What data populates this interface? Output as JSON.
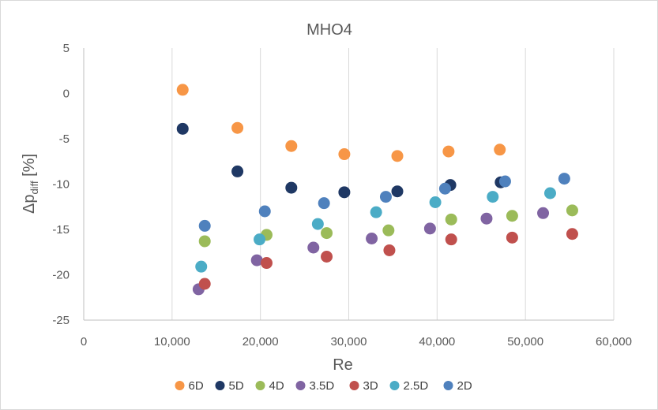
{
  "chart_data": {
    "type": "scatter",
    "title": "MHO4",
    "xlabel": "Re",
    "ylabel_main": "Δp",
    "ylabel_sub": "diff",
    "ylabel_unit": "[%]",
    "xlim": [
      0,
      60000
    ],
    "ylim": [
      -25,
      5
    ],
    "x_ticks": [
      0,
      10000,
      20000,
      30000,
      40000,
      50000,
      60000
    ],
    "x_tick_labels": [
      "0",
      "10,000",
      "20,000",
      "30,000",
      "40,000",
      "50,000",
      "60,000"
    ],
    "y_ticks": [
      5,
      0,
      -5,
      -10,
      -15,
      -20,
      -25
    ],
    "y_tick_labels": [
      "5",
      "0",
      "-5",
      "-10",
      "-15",
      "-20",
      "-25"
    ],
    "grid": "vertical",
    "legend_position": "bottom",
    "series": [
      {
        "name": "6D",
        "color": "#F79646",
        "points": [
          [
            11200,
            0.4
          ],
          [
            17400,
            -3.8
          ],
          [
            23500,
            -5.8
          ],
          [
            29500,
            -6.7
          ],
          [
            35500,
            -6.9
          ],
          [
            41300,
            -6.4
          ],
          [
            47100,
            -6.2
          ]
        ]
      },
      {
        "name": "5D",
        "color": "#1F3864",
        "points": [
          [
            11200,
            -3.9
          ],
          [
            17400,
            -8.6
          ],
          [
            23500,
            -10.4
          ],
          [
            29500,
            -10.9
          ],
          [
            35500,
            -10.8
          ],
          [
            41500,
            -10.1
          ],
          [
            47200,
            -9.8
          ]
        ]
      },
      {
        "name": "4D",
        "color": "#9BBB59",
        "points": [
          [
            13700,
            -16.3
          ],
          [
            20700,
            -15.6
          ],
          [
            27500,
            -15.4
          ],
          [
            34500,
            -15.1
          ],
          [
            41600,
            -13.9
          ],
          [
            48500,
            -13.5
          ],
          [
            55300,
            -12.9
          ]
        ]
      },
      {
        "name": "3.5D",
        "color": "#8064A2",
        "points": [
          [
            13000,
            -21.6
          ],
          [
            19600,
            -18.4
          ],
          [
            26000,
            -17.0
          ],
          [
            32600,
            -16.0
          ],
          [
            39200,
            -14.9
          ],
          [
            45600,
            -13.8
          ],
          [
            52000,
            -13.2
          ]
        ]
      },
      {
        "name": "3D",
        "color": "#C0504D",
        "points": [
          [
            13700,
            -21.0
          ],
          [
            20700,
            -18.7
          ],
          [
            27500,
            -18.0
          ],
          [
            34600,
            -17.3
          ],
          [
            41600,
            -16.1
          ],
          [
            48500,
            -15.9
          ],
          [
            55300,
            -15.5
          ]
        ]
      },
      {
        "name": "2.5D",
        "color": "#4BACC6",
        "points": [
          [
            13300,
            -19.1
          ],
          [
            19900,
            -16.1
          ],
          [
            26500,
            -14.4
          ],
          [
            33100,
            -13.1
          ],
          [
            39800,
            -12.0
          ],
          [
            46300,
            -11.4
          ],
          [
            52800,
            -11.0
          ]
        ]
      },
      {
        "name": "2D",
        "color": "#4F81BD",
        "points": [
          [
            13700,
            -14.6
          ],
          [
            20500,
            -13.0
          ],
          [
            27200,
            -12.1
          ],
          [
            34200,
            -11.4
          ],
          [
            40900,
            -10.5
          ],
          [
            47700,
            -9.7
          ],
          [
            54400,
            -9.4
          ]
        ]
      }
    ]
  }
}
